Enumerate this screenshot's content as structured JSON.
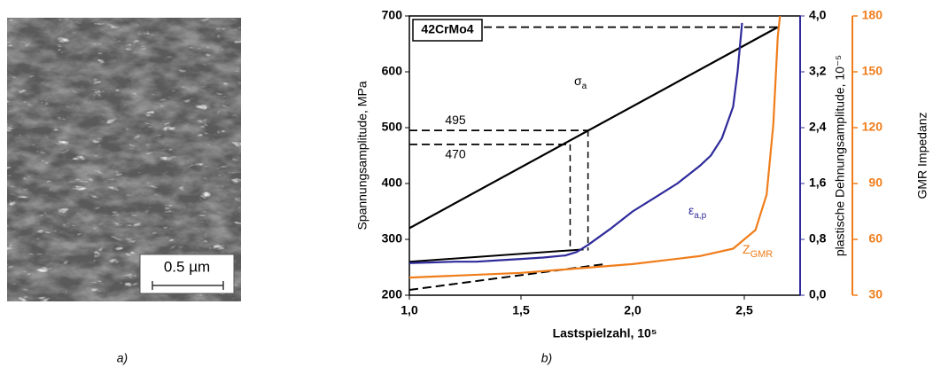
{
  "figure": {
    "panel_a_label": "a)",
    "panel_b_label": "b)",
    "scale_bar": "0.5 µm"
  },
  "chart_data": {
    "type": "line",
    "box_label": "42CrMo4",
    "xlabel": "Lastspielzahl, 10⁵",
    "ylabel": "Spannungsamplitude, MPa",
    "y2label": "plastische Dehnungsamplitude, 10⁻⁵",
    "y3label": "GMR Impedanz",
    "xlim": [
      1.0,
      2.75
    ],
    "xticks": [
      {
        "value": 1.0,
        "label": "1,0"
      },
      {
        "value": 1.5,
        "label": "1,5"
      },
      {
        "value": 2.0,
        "label": "2,0"
      },
      {
        "value": 2.5,
        "label": "2,5"
      }
    ],
    "ylim": [
      200,
      700
    ],
    "yticks": [
      200,
      300,
      400,
      500,
      600,
      700
    ],
    "y2lim": [
      0,
      4.0
    ],
    "y2ticks": [
      {
        "value": 0,
        "label": "0,0"
      },
      {
        "value": 0.8,
        "label": "0,8"
      },
      {
        "value": 1.6,
        "label": "1,6"
      },
      {
        "value": 2.4,
        "label": "2,4"
      },
      {
        "value": 3.2,
        "label": "3,2"
      },
      {
        "value": 4.0,
        "label": "4,0"
      }
    ],
    "y3lim": [
      30,
      180
    ],
    "y3ticks": [
      30,
      60,
      90,
      120,
      150,
      180
    ],
    "y2color": "#2e2a9a",
    "y3color": "#f07d1a",
    "series": [
      {
        "name": "σ",
        "name_sub": "a",
        "color": "#000000",
        "axis": "y",
        "x": [
          1.0,
          2.65
        ],
        "values": [
          320,
          680
        ]
      },
      {
        "name": "ε",
        "name_sub": "a,p",
        "color": "#2e2a9a",
        "axis": "y2",
        "x": [
          1.0,
          1.1,
          1.2,
          1.3,
          1.4,
          1.5,
          1.6,
          1.7,
          1.75,
          1.8,
          1.9,
          2.0,
          2.1,
          2.2,
          2.3,
          2.35,
          2.4,
          2.45,
          2.47,
          2.49
        ],
        "values": [
          0.46,
          0.47,
          0.48,
          0.48,
          0.5,
          0.52,
          0.54,
          0.57,
          0.62,
          0.72,
          0.95,
          1.2,
          1.4,
          1.6,
          1.85,
          2.0,
          2.25,
          2.7,
          3.2,
          3.9
        ]
      },
      {
        "name": "Z",
        "name_sub": "GMR",
        "color": "#f07d1a",
        "axis": "y3",
        "x": [
          1.0,
          1.5,
          2.0,
          2.3,
          2.45,
          2.55,
          2.6,
          2.63,
          2.65,
          2.66
        ],
        "values": [
          39.5,
          42,
          46.7,
          51,
          55,
          65,
          84,
          122,
          169,
          180
        ]
      }
    ],
    "fits": [
      {
        "x": [
          1.0,
          1.78
        ],
        "values": [
          260,
          282
        ],
        "dashed": false
      },
      {
        "x": [
          1.0,
          1.87
        ],
        "values": [
          209.5,
          255.5
        ],
        "dashed": true
      }
    ],
    "markers": [
      {
        "y": 680,
        "x": 2.65
      },
      {
        "y": 495,
        "x": 1.8,
        "y_to": 280
      },
      {
        "y": 470,
        "x": 1.72,
        "y_to": 280
      }
    ]
  }
}
